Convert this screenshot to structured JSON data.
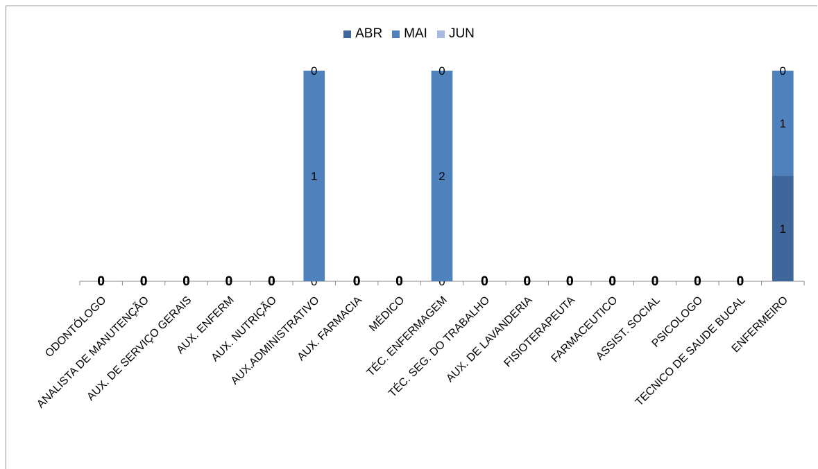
{
  "chart_data": {
    "type": "bar",
    "stacked": true,
    "categories": [
      "ODONTÓLOGO",
      "ANALISTA DE MANUTENÇÃO",
      "AUX. DE SERVIÇO GERAIS",
      "AUX. ENFERM",
      "AUX. NUTRIÇÃO",
      "AUX.ADMINISTRATIVO",
      "AUX. FARMACIA",
      "MÉDICO",
      "TÉC. ENFERMAGEM",
      "TÉC. SEG. DO TRABALHO",
      "AUX. DE LAVANDERIA",
      "FISIOTERAPEUTA",
      "FARMACEUTICO",
      "ASSIST. SOCIAL",
      "PSICOLOGO",
      "TECNICO DE SAUDE BUCAL",
      "ENFERMEIRO"
    ],
    "series": [
      {
        "name": "ABR",
        "color": "#3f679b",
        "values": [
          0,
          0,
          0,
          0,
          0,
          0,
          0,
          0,
          0,
          0,
          0,
          0,
          0,
          0,
          0,
          0,
          1
        ]
      },
      {
        "name": "MAI",
        "color": "#4f81bd",
        "values": [
          0,
          0,
          0,
          0,
          0,
          1,
          0,
          0,
          2,
          0,
          0,
          0,
          0,
          0,
          0,
          0,
          1
        ]
      },
      {
        "name": "JUN",
        "color": "#a7b9dc",
        "values": [
          0,
          0,
          0,
          0,
          0,
          0,
          0,
          0,
          0,
          0,
          0,
          0,
          0,
          0,
          0,
          0,
          0
        ]
      }
    ],
    "normalized_height_per_category": true,
    "legend_position": "top",
    "grid": false
  }
}
